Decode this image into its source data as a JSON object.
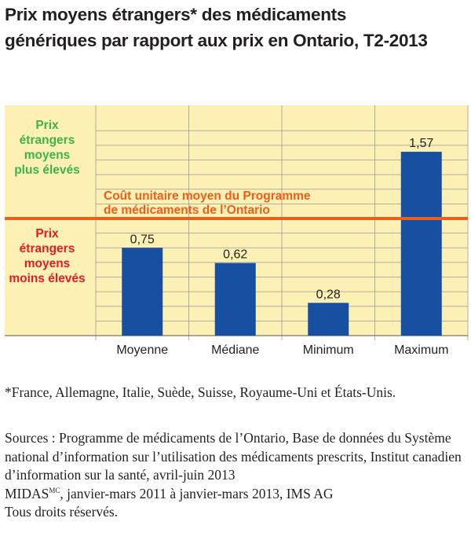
{
  "title": "Prix moyens étrangers* des médicaments\ngénériques par rapport aux prix en Ontario, T2-2013",
  "chart_data": {
    "type": "bar",
    "categories": [
      "Moyenne",
      "Médiane",
      "Minimum",
      "Maximum"
    ],
    "values": [
      0.75,
      0.62,
      0.28,
      1.57
    ],
    "value_labels": [
      "0,75",
      "0,62",
      "0,28",
      "1,57"
    ],
    "ylim": [
      0,
      1.75
    ],
    "reference_line": {
      "value": 1.0,
      "label_line1": "Coût unitaire moyen du Programme",
      "label_line2": "de médicaments de l’Ontario",
      "color": "#e8601c"
    },
    "upper_zone_label": [
      "Prix",
      "étrangers",
      "moyens",
      "plus élevés"
    ],
    "lower_zone_label": [
      "Prix",
      "étrangers",
      "moyens",
      "moins élevés"
    ],
    "upper_label_color": "#3bb54a",
    "lower_label_color": "#e31b23",
    "background_color": "#fdf0b4",
    "bar_color": "#1750a0",
    "grid": true
  },
  "footnote": "*France, Allemagne, Italie, Suède, Suisse, Royaume-Uni et États-Unis.",
  "sources": {
    "line1": "Sources : Programme de médicaments de l’Ontario, Base de données du Système national d’information sur l’utilisation des médicaments prescrits, Institut canadien d’information sur la santé, avril-juin 2013",
    "midas": "MIDAS",
    "midas_sup": "MC",
    "line2_rest": ", janvier-mars 2011 à janvier-mars 2013, IMS AG",
    "line3": "Tous droits réservés."
  }
}
